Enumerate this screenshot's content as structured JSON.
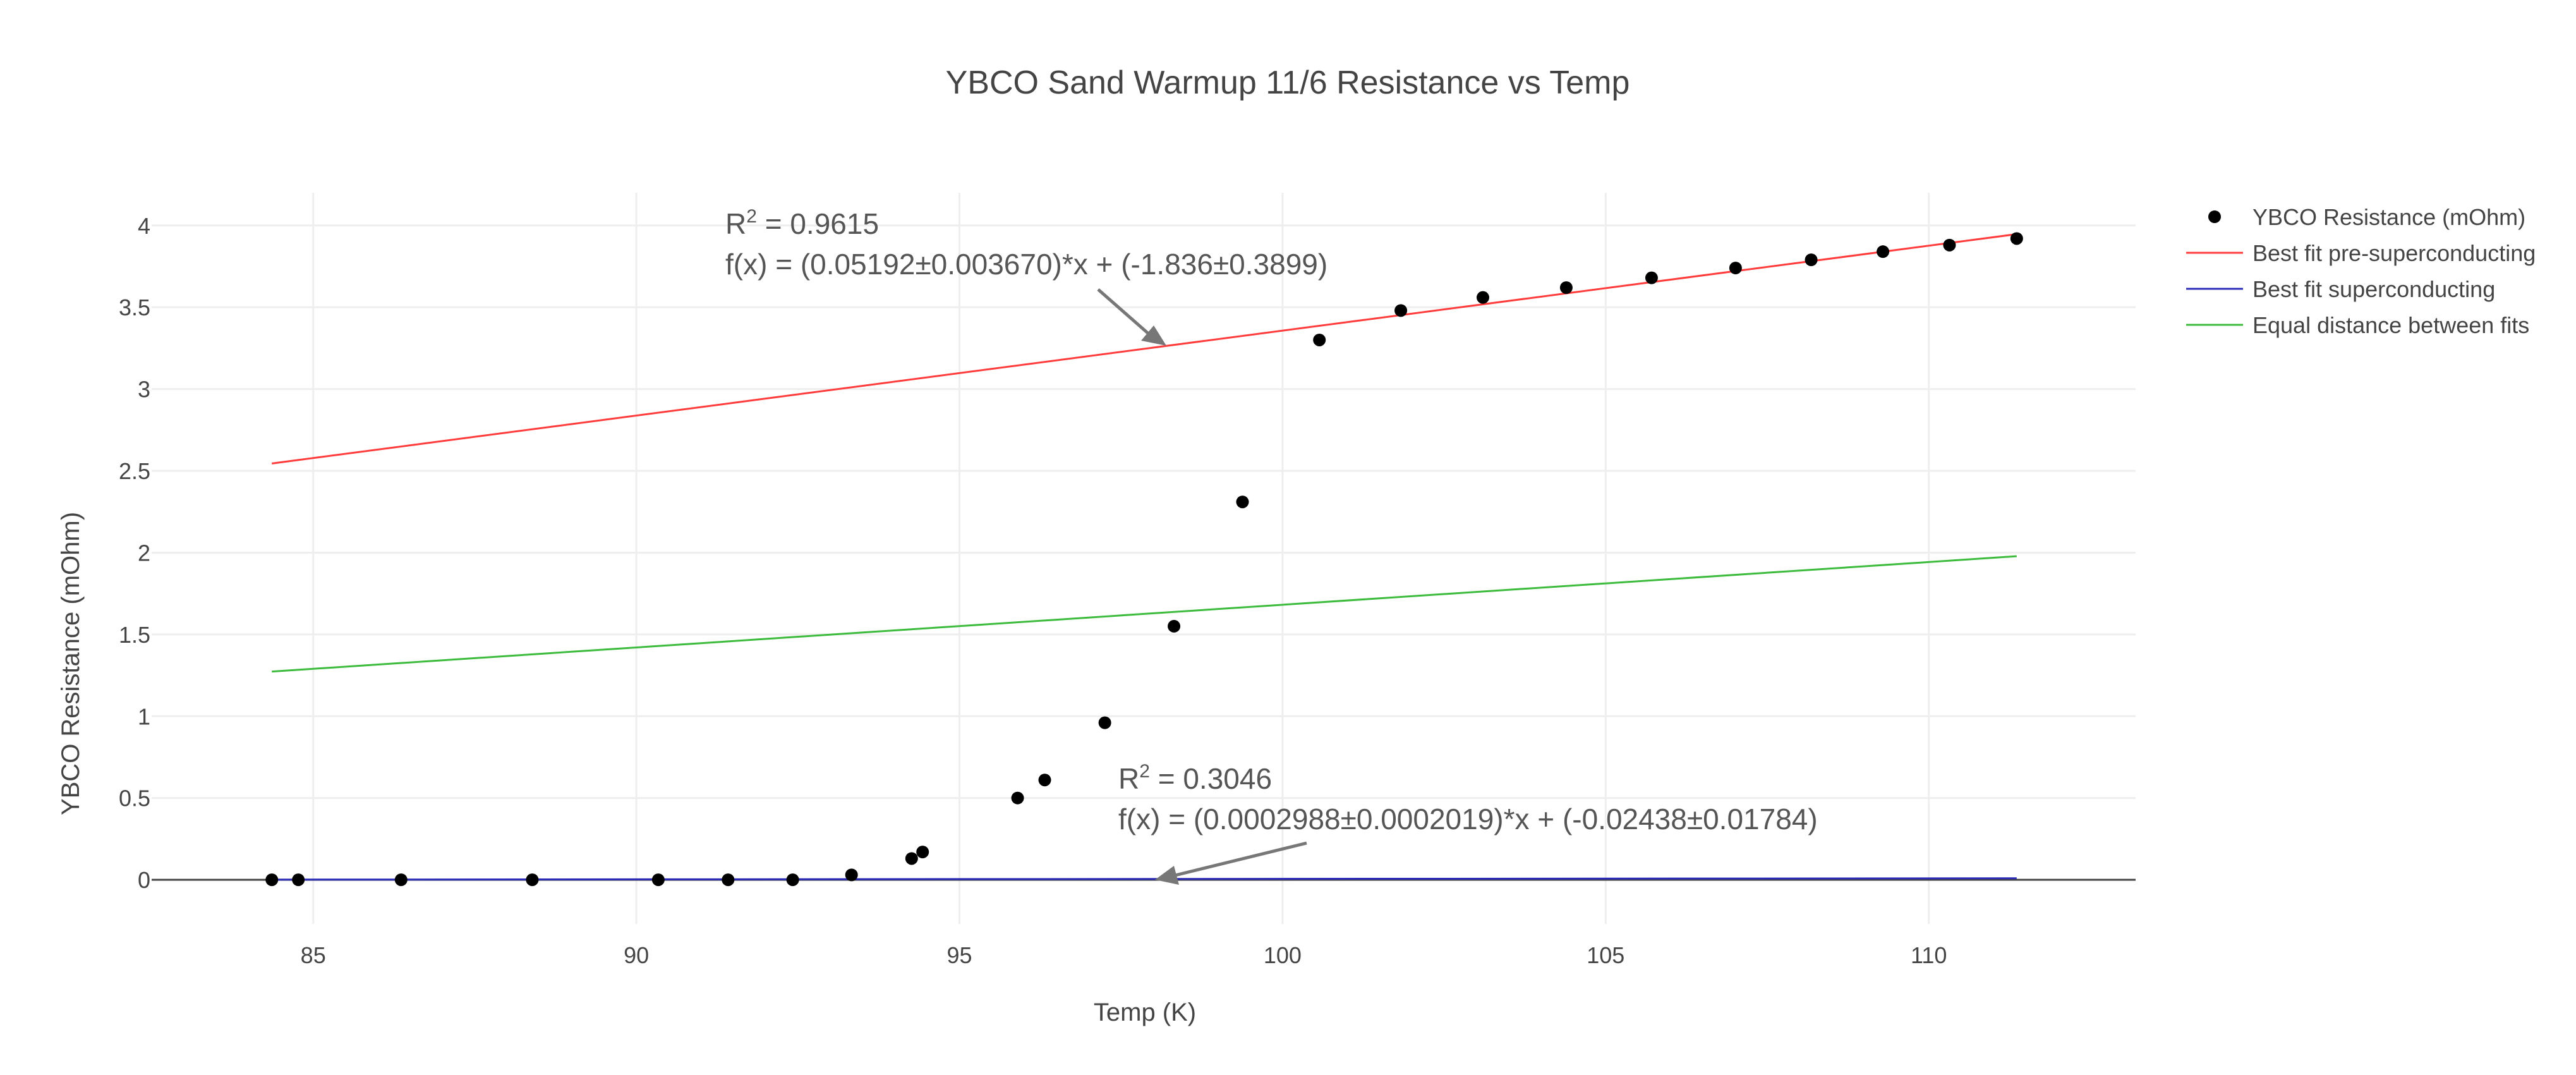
{
  "chart_data": {
    "type": "scatter",
    "title": "YBCO Sand Warmup 11/6 Resistance vs Temp",
    "xlabel": "Temp (K)",
    "ylabel": "YBCO Resistance (mOhm)",
    "xlim": [
      82.5,
      113.2
    ],
    "ylim": [
      -0.27,
      4.2
    ],
    "xticks": [
      85,
      90,
      95,
      100,
      105,
      110
    ],
    "yticks": [
      0,
      0.5,
      1,
      1.5,
      2,
      2.5,
      3,
      3.5,
      4
    ],
    "grid": true,
    "legend_position": "top-right",
    "series": [
      {
        "name": "YBCO Resistance (mOhm)",
        "mode": "markers",
        "color": "#000000",
        "x": [
          84.36,
          84.77,
          86.36,
          88.39,
          90.34,
          91.42,
          92.42,
          93.33,
          94.26,
          94.43,
          95.9,
          96.32,
          97.25,
          98.32,
          99.38,
          100.57,
          101.83,
          103.1,
          104.39,
          105.71,
          107.01,
          108.18,
          109.29,
          110.32,
          111.36
        ],
        "y": [
          0.0,
          0.0,
          0.0,
          0.0,
          0.0,
          0.0,
          0.0,
          0.03,
          0.13,
          0.17,
          0.5,
          0.61,
          0.96,
          1.55,
          2.31,
          3.3,
          3.48,
          3.56,
          3.62,
          3.68,
          3.74,
          3.79,
          3.84,
          3.88,
          3.92
        ]
      },
      {
        "name": "Best fit pre-superconducting",
        "mode": "lines",
        "color": "#ff3b3b",
        "x": [
          84.36,
          111.36
        ],
        "y": [
          2.545,
          3.947
        ]
      },
      {
        "name": "Best fit superconducting",
        "mode": "lines",
        "color": "#2b2bb8",
        "x": [
          84.36,
          111.36
        ],
        "y": [
          0.001,
          0.009
        ]
      },
      {
        "name": "Equal distance between fits",
        "mode": "lines",
        "color": "#3dbb3d",
        "x": [
          84.36,
          111.36
        ],
        "y": [
          1.273,
          1.978
        ]
      }
    ],
    "annotations": [
      {
        "r2_label": "R",
        "r2_sup": "2",
        "r2_value": " = 0.9615",
        "formula": "f(x) = (0.05192±0.003670)*x + (-1.836±0.3899)",
        "arrow_x": 98.3,
        "arrow_y": 3.25
      },
      {
        "r2_label": "R",
        "r2_sup": "2",
        "r2_value": " = 0.3046",
        "formula": "f(x) = (0.0002988±0.0002019)*x + (-0.02438±0.01784)",
        "arrow_x": 98.0,
        "arrow_y": 0.005
      }
    ]
  }
}
